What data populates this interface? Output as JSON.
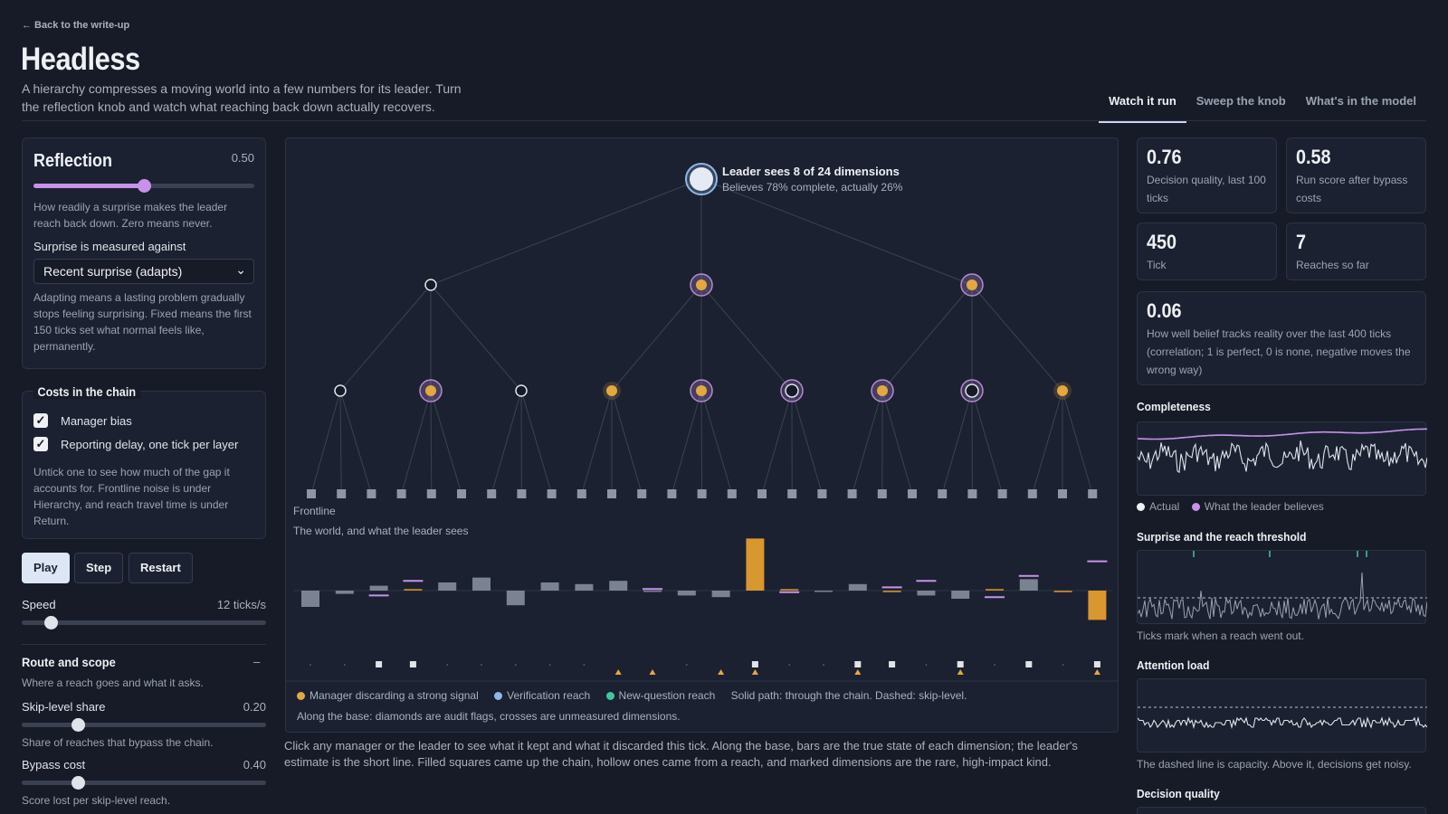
{
  "nav": {
    "back": "← Back to the write-up"
  },
  "header": {
    "title": "Headless",
    "subtitle": "A hierarchy compresses a moving world into a few numbers for its leader. Turn the reflection knob and watch what reaching back down actually recovers."
  },
  "tabs": [
    {
      "label": "Watch it run",
      "active": true
    },
    {
      "label": "Sweep the knob",
      "active": false
    },
    {
      "label": "What's in the model",
      "active": false
    }
  ],
  "reflection": {
    "title": "Reflection",
    "value": "0.50",
    "level": 0.5,
    "note": "How readily a surprise makes the leader reach back down. Zero means never.",
    "surprise_label": "Surprise is measured against",
    "surprise_selected": "Recent surprise (adapts)",
    "surprise_note": "Adapting means a lasting problem gradually stops feeling surprising. Fixed means the first 150 ticks set what normal feels like, permanently."
  },
  "costs": {
    "title": "Costs in the chain",
    "manager_bias": "Manager bias",
    "reporting_delay": "Reporting delay, one tick per layer",
    "note": "Untick one to see how much of the gap it accounts for. Frontline noise is under Hierarchy, and reach travel time is under Return."
  },
  "controls": {
    "play": "Play",
    "step": "Step",
    "restart": "Restart",
    "speed_label": "Speed",
    "speed_value": "12 ticks/s",
    "speed_level": 0.1
  },
  "route": {
    "title": "Route and scope",
    "collapse": "–",
    "note": "Where a reach goes and what it asks.",
    "skip_label": "Skip-level share",
    "skip_value": "0.20",
    "skip_level": 0.2,
    "skip_note": "Share of reaches that bypass the chain.",
    "bypass_label": "Bypass cost",
    "bypass_value": "0.40",
    "bypass_level": 0.22,
    "bypass_note": "Score lost per skip-level reach."
  },
  "viz": {
    "leader_title": "Leader sees 8 of 24 dimensions",
    "leader_sub": "Believes 78% complete, actually 26%",
    "frontline": "Frontline",
    "world_label": "The world, and what the leader sees",
    "legend_discard": "Manager discarding a strong signal",
    "legend_verify": "Verification reach",
    "legend_question": "New-question reach",
    "legend_path": "Solid path: through the chain. Dashed: skip-level.",
    "legend_base": "Along the base: diamonds are audit flags, crosses are unmeasured dimensions.",
    "caption": "Click any manager or the leader to see what it kept and what it discarded this tick. Along the base, bars are the true state of each dimension; the leader's estimate is the short line. Filled squares came up the chain, hollow ones came from a reach, and marked dimensions are the rare, high-impact kind.",
    "managers": [
      "hollow",
      "lit",
      "lit"
    ],
    "leaves": [
      "hollow",
      "lit",
      "hollow",
      "orange",
      "lit",
      "ring",
      "lit",
      "ring",
      "orange"
    ],
    "truth": [
      -0.1,
      -0.02,
      0.03,
      0.01,
      0.05,
      0.08,
      -0.09,
      0.05,
      0.04,
      0.06,
      0.0,
      -0.03,
      -0.04,
      0.32,
      0.01,
      0.0,
      0.04,
      -0.01,
      -0.03,
      -0.05,
      0.01,
      0.07,
      -0.01,
      -0.18
    ],
    "belief": [
      null,
      null,
      -0.03,
      0.06,
      null,
      null,
      null,
      null,
      null,
      null,
      0.01,
      null,
      null,
      null,
      -0.01,
      null,
      null,
      0.02,
      0.06,
      null,
      -0.04,
      0.09,
      null,
      0.18
    ],
    "base_marks": [
      "dot",
      "dot",
      "sq",
      "sq",
      "dot",
      "dot",
      "dot",
      "dot",
      "dot",
      "tri",
      "tri",
      "dot",
      "tri",
      "sqtri",
      "dot",
      "dot",
      "sqtri",
      "sq",
      "dot",
      "sqtri",
      "dot",
      "sq",
      "dot",
      "sqtri"
    ]
  },
  "stats": {
    "decision_quality": {
      "value": "0.76",
      "label": "Decision quality, last 100 ticks"
    },
    "run_score": {
      "value": "0.58",
      "label": "Run score after bypass costs"
    },
    "tick": {
      "value": "450",
      "label": "Tick"
    },
    "reaches": {
      "value": "7",
      "label": "Reaches so far"
    },
    "tracking": {
      "value": "0.06",
      "label": "How well belief tracks reality over the last 400 ticks (correlation; 1 is perfect, 0 is none, negative moves the wrong way)"
    }
  },
  "panels": {
    "completeness": {
      "title": "Completeness",
      "actual": "Actual",
      "believes": "What the leader believes"
    },
    "surprise": {
      "title": "Surprise and the reach threshold",
      "note": "Ticks mark when a reach went out."
    },
    "attention": {
      "title": "Attention load",
      "note": "The dashed line is capacity. Above it, decisions get noisy."
    },
    "decision": {
      "title": "Decision quality"
    }
  },
  "colors": {
    "accent_purple": "#c792ea",
    "orange": "#e3a83e",
    "verify_blue": "#8fb7e8",
    "question_green": "#3fc7a0"
  }
}
